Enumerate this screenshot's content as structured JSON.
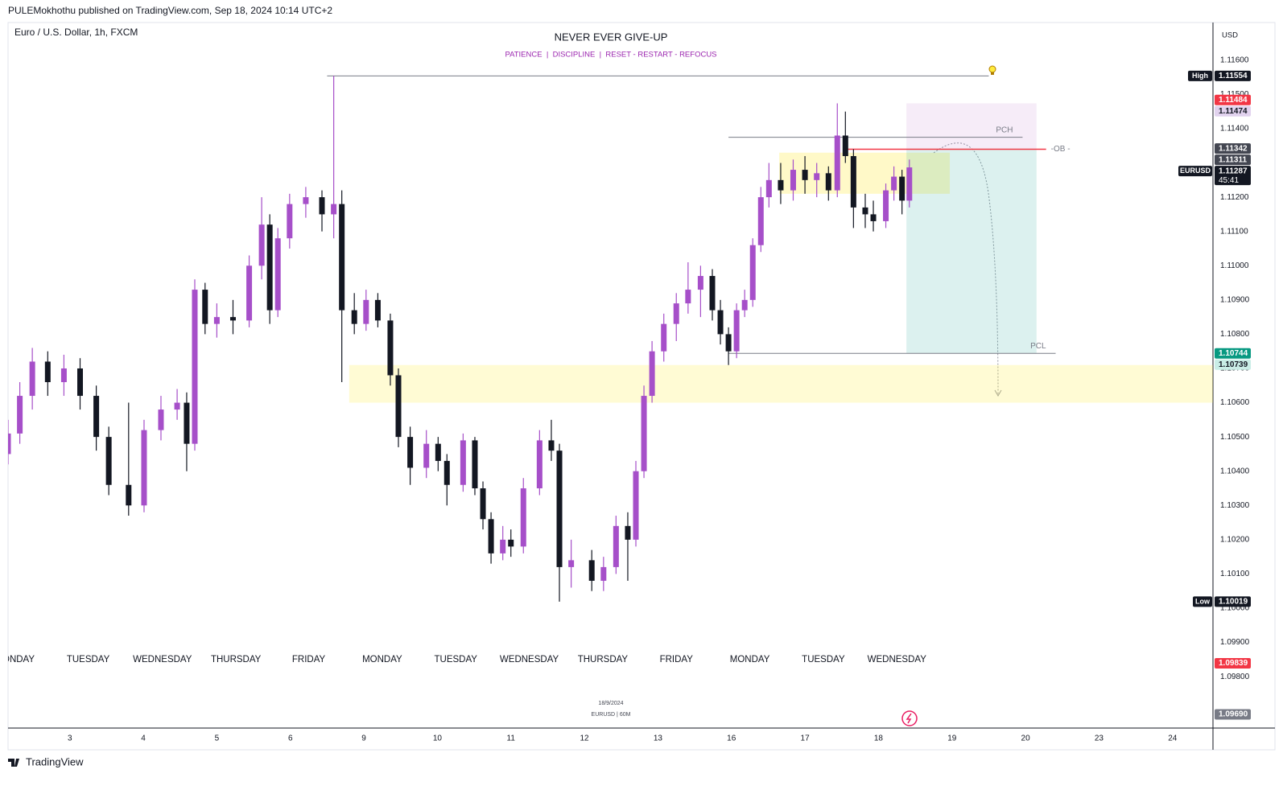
{
  "header": "PULEMokhothu published on TradingView.com, Sep 18, 2024 10:14 UTC+2",
  "footer": "TradingView",
  "watermark": {
    "date": "18/9/2024",
    "symbol": "EURUSD | 60M"
  },
  "chart_data": {
    "type": "candlestick",
    "symbol": "Euro / U.S. Dollar, 1h, FXCM",
    "title": "NEVER EVER GIVE-UP",
    "subtitle": "PATIENCE  |  DISCIPLINE  |  RESET - RESTART - REFOCUS",
    "currency": "USD",
    "up_color": "#a64fc9",
    "down_color": "#131722",
    "x": [
      -0.84,
      -0.68,
      -0.51,
      -0.3,
      -0.08,
      0.14,
      0.36,
      0.53,
      0.8,
      1.01,
      1.24,
      1.46,
      1.59,
      1.7,
      1.84,
      2.0,
      2.22,
      2.44,
      2.61,
      2.72,
      2.83,
      2.99,
      3.21,
      3.43,
      3.59,
      3.7,
      3.87,
      4.03,
      4.19,
      4.36,
      4.47,
      4.63,
      4.85,
      5.01,
      5.13,
      5.35,
      5.51,
      5.62,
      5.73,
      5.89,
      6.0,
      6.17,
      6.39,
      6.55,
      6.66,
      6.82,
      7.1,
      7.26,
      7.43,
      7.59,
      7.7,
      7.81,
      7.92,
      8.08,
      8.25,
      8.41,
      8.58,
      8.74,
      8.85,
      8.96,
      9.07,
      9.18,
      9.29,
      9.4,
      9.51,
      9.67,
      9.84,
      10.0,
      10.16,
      10.32,
      10.44,
      10.55,
      10.66,
      10.82,
      10.93,
      11.1,
      11.21,
      11.32,
      11.42
    ],
    "open": [
      1.1045,
      1.1051,
      1.1062,
      1.1072,
      1.1066,
      1.107,
      1.1062,
      1.105,
      1.1036,
      1.103,
      1.1052,
      1.1058,
      1.106,
      1.1048,
      1.1093,
      1.1083,
      1.1085,
      1.1084,
      1.11,
      1.1112,
      1.1087,
      1.1108,
      1.1118,
      1.112,
      1.1115,
      1.1118,
      1.1087,
      1.1083,
      1.109,
      1.1084,
      1.1068,
      1.105,
      1.1041,
      1.1048,
      1.1043,
      1.1036,
      1.1049,
      1.1035,
      1.1026,
      1.1016,
      1.102,
      1.1018,
      1.1035,
      1.1049,
      1.1046,
      1.1012,
      1.1014,
      1.1008,
      1.1012,
      1.1024,
      1.102,
      1.104,
      1.1062,
      1.1075,
      1.1083,
      1.1089,
      1.1093,
      1.1097,
      1.1087,
      1.108,
      1.1075,
      1.1087,
      1.109,
      1.1106,
      1.112,
      1.1125,
      1.1122,
      1.1128,
      1.1125,
      1.1127,
      1.1122,
      1.1138,
      1.1132,
      1.1117,
      1.1115,
      1.1113,
      1.1122,
      1.1126,
      1.1119
    ],
    "high": [
      1.1055,
      1.1066,
      1.1076,
      1.1075,
      1.1074,
      1.1073,
      1.1065,
      1.1053,
      1.106,
      1.1055,
      1.1062,
      1.1064,
      1.1063,
      1.1096,
      1.1095,
      1.1089,
      1.109,
      1.1103,
      1.112,
      1.1115,
      1.1111,
      1.1121,
      1.1123,
      1.1122,
      1.11554,
      1.1122,
      1.1092,
      1.1093,
      1.1092,
      1.1086,
      1.107,
      1.1053,
      1.1052,
      1.105,
      1.1045,
      1.1051,
      1.105,
      1.1037,
      1.1028,
      1.1024,
      1.1023,
      1.1038,
      1.1052,
      1.1055,
      1.1048,
      1.102,
      1.1017,
      1.1015,
      1.1027,
      1.1028,
      1.1043,
      1.1065,
      1.1078,
      1.1086,
      1.1092,
      1.1101,
      1.11,
      1.1099,
      1.109,
      1.1082,
      1.1089,
      1.1093,
      1.1108,
      1.1123,
      1.113,
      1.113,
      1.1131,
      1.1132,
      1.113,
      1.1129,
      1.11474,
      1.1145,
      1.1134,
      1.1121,
      1.1119,
      1.1124,
      1.1129,
      1.1128,
      1.1131
    ],
    "low": [
      1.1042,
      1.1048,
      1.1058,
      1.1062,
      1.1062,
      1.1058,
      1.1046,
      1.1033,
      1.1027,
      1.1028,
      1.1049,
      1.1055,
      1.104,
      1.1046,
      1.108,
      1.1079,
      1.108,
      1.1082,
      1.1096,
      1.1083,
      1.1085,
      1.1105,
      1.1114,
      1.111,
      1.1108,
      1.1066,
      1.108,
      1.1081,
      1.1082,
      1.1065,
      1.1047,
      1.1036,
      1.1038,
      1.104,
      1.103,
      1.1034,
      1.1033,
      1.1023,
      1.1013,
      1.1014,
      1.1015,
      1.1016,
      1.1033,
      1.1043,
      1.10019,
      1.1006,
      1.1005,
      1.1005,
      1.101,
      1.1008,
      1.1018,
      1.1038,
      1.106,
      1.1072,
      1.1078,
      1.1086,
      1.1085,
      1.1084,
      1.1077,
      1.1071,
      1.1073,
      1.1085,
      1.1088,
      1.1104,
      1.1117,
      1.1118,
      1.1119,
      1.1121,
      1.112,
      1.1119,
      1.112,
      1.113,
      1.1111,
      1.1111,
      1.111,
      1.1111,
      1.1119,
      1.1115,
      1.1117
    ],
    "close": [
      1.1051,
      1.1062,
      1.1072,
      1.1066,
      1.107,
      1.1062,
      1.105,
      1.1036,
      1.103,
      1.1052,
      1.1058,
      1.106,
      1.1048,
      1.1093,
      1.1083,
      1.1085,
      1.1084,
      1.11,
      1.1112,
      1.1087,
      1.1108,
      1.1118,
      1.112,
      1.1115,
      1.1118,
      1.1087,
      1.1083,
      1.109,
      1.1084,
      1.1068,
      1.105,
      1.1041,
      1.1048,
      1.1043,
      1.1036,
      1.1049,
      1.1035,
      1.1026,
      1.1016,
      1.102,
      1.1018,
      1.1035,
      1.1049,
      1.1046,
      1.1012,
      1.1014,
      1.1008,
      1.1012,
      1.1024,
      1.102,
      1.104,
      1.1062,
      1.1075,
      1.1083,
      1.1089,
      1.1093,
      1.1097,
      1.1087,
      1.108,
      1.1075,
      1.1087,
      1.109,
      1.1106,
      1.112,
      1.1125,
      1.1122,
      1.1128,
      1.1125,
      1.1127,
      1.1122,
      1.1138,
      1.1132,
      1.1117,
      1.1115,
      1.1113,
      1.1122,
      1.1126,
      1.1119,
      1.11287
    ],
    "xlim": [
      -0.84,
      15.55
    ],
    "xticks": [
      {
        "value": 0,
        "label": "3"
      },
      {
        "value": 1,
        "label": "4"
      },
      {
        "value": 2,
        "label": "5"
      },
      {
        "value": 3,
        "label": "6"
      },
      {
        "value": 4,
        "label": "9"
      },
      {
        "value": 5,
        "label": "10"
      },
      {
        "value": 6,
        "label": "11"
      },
      {
        "value": 7,
        "label": "12"
      },
      {
        "value": 8,
        "label": "13"
      },
      {
        "value": 9,
        "label": "16"
      },
      {
        "value": 10,
        "label": "17"
      },
      {
        "value": 11,
        "label": "18"
      },
      {
        "value": 12,
        "label": "19"
      },
      {
        "value": 13,
        "label": "20"
      },
      {
        "value": 14,
        "label": "23"
      },
      {
        "value": 15,
        "label": "24"
      }
    ],
    "ylim": [
      1.0965,
      1.1171
    ],
    "yticks": [
      {
        "value": 1.098,
        "label": "1.09800"
      },
      {
        "value": 1.099,
        "label": "1.09900"
      },
      {
        "value": 1.1,
        "label": "1.10000"
      },
      {
        "value": 1.101,
        "label": "1.10100"
      },
      {
        "value": 1.102,
        "label": "1.10200"
      },
      {
        "value": 1.103,
        "label": "1.10300"
      },
      {
        "value": 1.104,
        "label": "1.10400"
      },
      {
        "value": 1.105,
        "label": "1.10500"
      },
      {
        "value": 1.106,
        "label": "1.10600"
      },
      {
        "value": 1.107,
        "label": "1.10700"
      },
      {
        "value": 1.108,
        "label": "1.10800"
      },
      {
        "value": 1.109,
        "label": "1.10900"
      },
      {
        "value": 1.11,
        "label": "1.11000"
      },
      {
        "value": 1.111,
        "label": "1.11100"
      },
      {
        "value": 1.112,
        "label": "1.11200"
      },
      {
        "value": 1.113,
        "label": "1.11300"
      },
      {
        "value": 1.114,
        "label": "1.11400"
      },
      {
        "value": 1.115,
        "label": "1.11500"
      },
      {
        "value": 1.116,
        "label": "1.11600"
      }
    ],
    "session_labels": {
      "x": [
        -0.75,
        0.25,
        1.26,
        2.26,
        3.25,
        4.25,
        5.25,
        6.25,
        7.25,
        8.25,
        9.25,
        10.25,
        11.25
      ],
      "labels": [
        "MONDAY",
        "TUESDAY",
        "WEDNESDAY",
        "THURSDAY",
        "FRIDAY",
        "MONDAY",
        "TUESDAY",
        "WEDNESDAY",
        "THURSDAY",
        "FRIDAY",
        "MONDAY",
        "TUESDAY",
        "WEDNESDAY"
      ]
    },
    "boxes": [
      {
        "top": 1.1071,
        "bottom": 1.106,
        "x": [
          3.8,
          15.55
        ],
        "color": "rgba(255,235,59,0.22)"
      },
      {
        "top": 1.1133,
        "bottom": 1.1121,
        "x": [
          9.65,
          11.97
        ],
        "color": "rgba(255,235,59,0.28)"
      },
      {
        "top": 1.11474,
        "bottom": 1.11342,
        "x": [
          11.38,
          13.15
        ],
        "color": "rgba(156,39,176,0.09)"
      },
      {
        "top": 1.11342,
        "bottom": 1.10744,
        "x": [
          11.38,
          13.15
        ],
        "color": "rgba(38,166,154,0.16)"
      }
    ],
    "lines": [
      {
        "value": 1.11554,
        "x": [
          3.5,
          12.5
        ],
        "color": "#787b86"
      },
      {
        "name": "PCH",
        "value": 1.11375,
        "x": [
          8.96,
          12.96
        ],
        "color": "#787b86",
        "label_pos": "above"
      },
      {
        "name": "-OB -",
        "value": 1.1134,
        "x": [
          10.55,
          13.28
        ],
        "color": "#f23645",
        "label_pos": "after"
      },
      {
        "name": "PCL",
        "value": 1.10744,
        "x": [
          8.96,
          13.41
        ],
        "color": "#787b86",
        "label_pos": "above"
      }
    ],
    "price_labels": [
      {
        "tag": "High",
        "value": 1.11554,
        "label": "1.11554",
        "bg": "#131722",
        "fg": "#ffffff"
      },
      {
        "value": 1.11484,
        "label": "1.11484",
        "bg": "#f23645",
        "fg": "#ffffff"
      },
      {
        "value": 1.11474,
        "label": "1.11474",
        "bg": "#e1d2ee",
        "fg": "#131722"
      },
      {
        "value": 1.11342,
        "label": "1.11342",
        "bg": "#434651",
        "fg": "#ffffff"
      },
      {
        "value": 1.11311,
        "label": "1.11311",
        "bg": "#434651",
        "fg": "#ffffff"
      },
      {
        "tag": "EURUSD",
        "value": 1.11287,
        "label": "1.11287",
        "countdown": "45:41",
        "bg": "#131722",
        "fg": "#ffffff"
      },
      {
        "value": 1.10744,
        "label": "1.10744",
        "bg": "#089981",
        "fg": "#ffffff"
      },
      {
        "value": 1.10739,
        "label": "1.10739",
        "bg": "#c9ede6",
        "fg": "#131722"
      },
      {
        "tag": "Low",
        "value": 1.10019,
        "label": "1.10019",
        "bg": "#131722",
        "fg": "#ffffff"
      },
      {
        "value": 1.09839,
        "label": "1.09839",
        "bg": "#f23645",
        "fg": "#ffffff"
      },
      {
        "value": 1.0969,
        "label": "1.09690",
        "bg": "#787b86",
        "fg": "#ffffff"
      }
    ]
  }
}
